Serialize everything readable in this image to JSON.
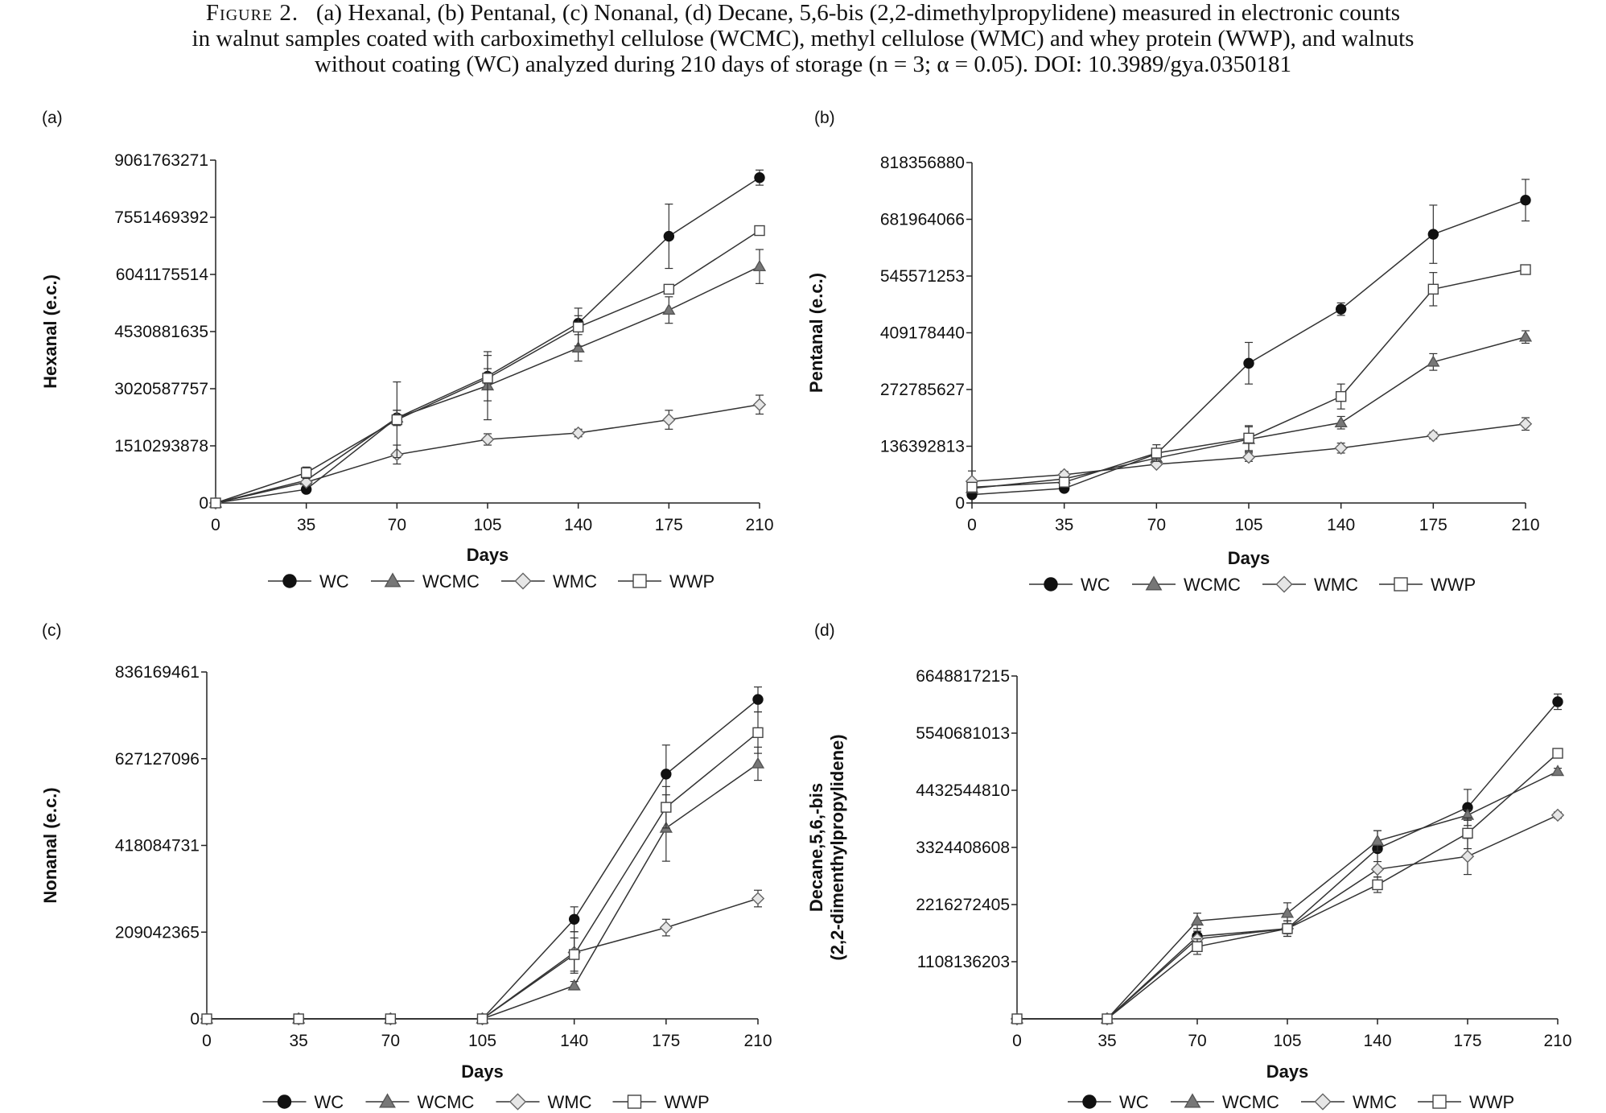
{
  "caption": {
    "figure_label": "Figure 2.",
    "lines": [
      "(a) Hexanal, (b) Pentanal, (c) Nonanal, (d) Decane, 5,6-bis (2,2-dimethylpropylidene) measured in electronic counts",
      "in walnut samples coated with carboximethyl cellulose (WCMC), methyl cellulose (WMC) and whey protein (WWP), and walnuts",
      "without coating (WC) analyzed during 210 days of storage (n = 3; α = 0.05). DOI: 10.3989/gya.0350181"
    ]
  },
  "series_style": {
    "WC": {
      "marker": "circle",
      "fill": "#111111",
      "stroke": "#111111"
    },
    "WCMC": {
      "marker": "triangle",
      "fill": "#777777",
      "stroke": "#555555"
    },
    "WMC": {
      "marker": "diamond",
      "fill": "#e6e6e6",
      "stroke": "#666666"
    },
    "WWP": {
      "marker": "square",
      "fill": "#ffffff",
      "stroke": "#444444"
    }
  },
  "chart_data": [
    {
      "panel_label": "(a)",
      "type": "line",
      "xlabel": "Days",
      "ylabel": [
        "Hexanal (e.c.)"
      ],
      "x": [
        0,
        35,
        70,
        105,
        140,
        175,
        210
      ],
      "xlim": [
        0,
        210
      ],
      "ylim": [
        0,
        9061763271
      ],
      "yticks": [
        "0",
        "1510293878",
        "3020587757",
        "4530881635",
        "6041175514",
        "7551469392",
        "9061763271"
      ],
      "legend": "bottom",
      "series": [
        {
          "name": "WC",
          "values": [
            0,
            360000000,
            2250000000,
            3350000000,
            4750000000,
            7050000000,
            8600000000
          ],
          "errors": [
            0,
            60000000,
            200000000,
            200000000,
            200000000,
            850000000,
            200000000
          ]
        },
        {
          "name": "WCMC",
          "values": [
            0,
            600000000,
            2250000000,
            3100000000,
            4100000000,
            5100000000,
            6250000000
          ],
          "errors": [
            0,
            100000000,
            200000000,
            900000000,
            350000000,
            350000000,
            450000000
          ]
        },
        {
          "name": "WMC",
          "values": [
            0,
            550000000,
            1280000000,
            1680000000,
            1850000000,
            2200000000,
            2600000000
          ],
          "errors": [
            0,
            100000000,
            250000000,
            150000000,
            100000000,
            250000000,
            250000000
          ]
        },
        {
          "name": "WWP",
          "values": [
            0,
            800000000,
            2200000000,
            3300000000,
            4650000000,
            5650000000,
            7200000000
          ],
          "errors": [
            0,
            150000000,
            1000000000,
            600000000,
            500000000,
            100000000,
            60000000
          ]
        }
      ]
    },
    {
      "panel_label": "(b)",
      "type": "line",
      "xlabel": "Days",
      "ylabel": [
        "Pentanal (e.c.)"
      ],
      "x": [
        0,
        35,
        70,
        105,
        140,
        175,
        210
      ],
      "xlim": [
        0,
        210
      ],
      "ylim": [
        0,
        818356880
      ],
      "yticks": [
        "0",
        "136392813",
        "272785627",
        "409178440",
        "545571253",
        "681964066",
        "818356880"
      ],
      "legend": "bottom",
      "series": [
        {
          "name": "WC",
          "values": [
            20000000,
            35000000,
            118000000,
            336000000,
            466000000,
            646000000,
            728000000
          ],
          "errors": [
            3000000,
            5000000,
            8000000,
            50000000,
            15000000,
            70000000,
            50000000
          ]
        },
        {
          "name": "WCMC",
          "values": [
            35000000,
            58000000,
            108000000,
            153000000,
            193000000,
            339000000,
            399000000
          ],
          "errors": [
            5000000,
            5000000,
            8000000,
            30000000,
            15000000,
            20000000,
            15000000
          ]
        },
        {
          "name": "WMC",
          "values": [
            52000000,
            68000000,
            93000000,
            110000000,
            132000000,
            162000000,
            190000000
          ],
          "errors": [
            25000000,
            8000000,
            5000000,
            10000000,
            12000000,
            8000000,
            15000000
          ]
        },
        {
          "name": "WWP",
          "values": [
            38000000,
            50000000,
            120000000,
            156000000,
            256000000,
            514000000,
            561000000
          ],
          "errors": [
            3000000,
            5000000,
            20000000,
            30000000,
            30000000,
            40000000,
            10000000
          ]
        }
      ]
    },
    {
      "panel_label": "(c)",
      "type": "line",
      "xlabel": "Days",
      "ylabel": [
        "Nonanal (e.c.)"
      ],
      "x": [
        0,
        35,
        70,
        105,
        140,
        175,
        210
      ],
      "xlim": [
        0,
        210
      ],
      "ylim": [
        0,
        836169461
      ],
      "yticks": [
        "0",
        "209042365",
        "418084731",
        "627127096",
        "836169461"
      ],
      "legend": "bottom",
      "series": [
        {
          "name": "WC",
          "values": [
            0,
            0,
            0,
            0,
            240000000,
            590000000,
            770000000
          ],
          "errors": [
            0,
            0,
            0,
            0,
            30000000,
            70000000,
            30000000
          ]
        },
        {
          "name": "WCMC",
          "values": [
            0,
            0,
            0,
            0,
            80000000,
            460000000,
            615000000
          ],
          "errors": [
            0,
            0,
            0,
            0,
            10000000,
            80000000,
            40000000
          ]
        },
        {
          "name": "WMC",
          "values": [
            0,
            0,
            0,
            0,
            160000000,
            220000000,
            290000000
          ],
          "errors": [
            0,
            0,
            0,
            0,
            50000000,
            20000000,
            20000000
          ]
        },
        {
          "name": "WWP",
          "values": [
            0,
            0,
            0,
            0,
            155000000,
            510000000,
            690000000
          ],
          "errors": [
            0,
            0,
            0,
            0,
            40000000,
            50000000,
            50000000
          ]
        }
      ]
    },
    {
      "panel_label": "(d)",
      "type": "line",
      "xlabel": "Days",
      "ylabel": [
        "Decane,5,6,-bis",
        "(2,2-dimenthylpropylidene)"
      ],
      "x": [
        0,
        35,
        70,
        105,
        140,
        175,
        210
      ],
      "xlim": [
        0,
        210
      ],
      "ylim": [
        0,
        6648817215
      ],
      "yticks": [
        "",
        "1108136203",
        "2216272405",
        "3324408608",
        "4432544810",
        "5540681013",
        "6648817215"
      ],
      "legend": "bottom",
      "series": [
        {
          "name": "WC",
          "values": [
            0,
            0,
            1600000000,
            1750000000,
            3300000000,
            4100000000,
            6150000000
          ],
          "errors": [
            0,
            0,
            150000000,
            150000000,
            350000000,
            350000000,
            150000000
          ]
        },
        {
          "name": "WCMC",
          "values": [
            0,
            0,
            1900000000,
            2050000000,
            3450000000,
            3950000000,
            4800000000
          ],
          "errors": [
            0,
            0,
            150000000,
            200000000,
            200000000,
            100000000,
            60000000
          ]
        },
        {
          "name": "WMC",
          "values": [
            0,
            0,
            1550000000,
            1750000000,
            2900000000,
            3150000000,
            3950000000
          ],
          "errors": [
            0,
            0,
            150000000,
            150000000,
            150000000,
            350000000,
            60000000
          ]
        },
        {
          "name": "WWP",
          "values": [
            0,
            0,
            1400000000,
            1750000000,
            2600000000,
            3600000000,
            5150000000
          ],
          "errors": [
            0,
            0,
            150000000,
            100000000,
            150000000,
            300000000,
            60000000
          ]
        }
      ]
    }
  ]
}
